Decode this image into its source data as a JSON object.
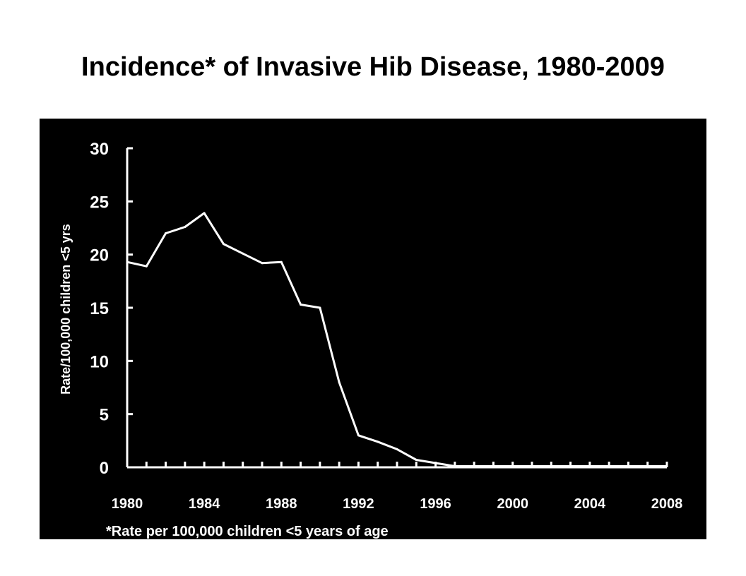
{
  "title": "Incidence* of Invasive Hib Disease, 1980-2009",
  "footnote": "*Rate per 100,000 children <5 years of age",
  "colors": {
    "background": "#000000",
    "line": "#ffffff",
    "axis": "#ffffff",
    "page": "#ffffff",
    "title": "#000000"
  },
  "chart_data": {
    "type": "line",
    "title": "Incidence* of Invasive Hib Disease, 1980-2009",
    "xlabel": "",
    "ylabel": "Rate/100,000 children <5 yrs",
    "xlim": [
      1980,
      2008
    ],
    "ylim": [
      0,
      30
    ],
    "yticks": [
      0,
      5,
      10,
      15,
      20,
      25,
      30
    ],
    "xtick_labels": [
      "1980",
      "1984",
      "1988",
      "1992",
      "1996",
      "2000",
      "2004",
      "2008"
    ],
    "grid": false,
    "x": [
      1980,
      1981,
      1982,
      1983,
      1984,
      1985,
      1986,
      1987,
      1988,
      1989,
      1990,
      1991,
      1992,
      1993,
      1994,
      1995,
      1996,
      1997,
      1998,
      1999,
      2000,
      2001,
      2002,
      2003,
      2004,
      2005,
      2006,
      2007,
      2008
    ],
    "series": [
      {
        "values": [
          19.3,
          18.9,
          22.0,
          22.6,
          23.9,
          21.0,
          20.1,
          19.2,
          19.3,
          15.3,
          15.0,
          8.0,
          3.0,
          2.4,
          1.7,
          0.7,
          0.4,
          0.1,
          0.1,
          0.1,
          0.1,
          0.1,
          0.1,
          0.1,
          0.1,
          0.1,
          0.1,
          0.1,
          0.1
        ]
      }
    ]
  }
}
